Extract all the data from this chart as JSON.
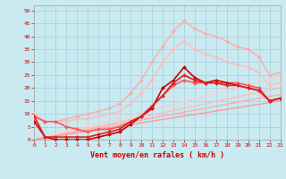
{
  "xlabel": "Vent moyen/en rafales ( km/h )",
  "bg_color": "#c8eaf0",
  "grid_color": "#a8ccd8",
  "ylim": [
    0,
    52
  ],
  "xlim": [
    0,
    23
  ],
  "yticks": [
    0,
    5,
    10,
    15,
    20,
    25,
    30,
    35,
    40,
    45,
    50
  ],
  "xticks": [
    0,
    1,
    2,
    3,
    4,
    5,
    6,
    7,
    8,
    9,
    10,
    11,
    12,
    13,
    14,
    15,
    16,
    17,
    18,
    19,
    20,
    21,
    22,
    23
  ],
  "series": [
    {
      "y": [
        10,
        7,
        7,
        8,
        9,
        10,
        11,
        12,
        14,
        18,
        23,
        30,
        36,
        42,
        46,
        43,
        41,
        40,
        38,
        36,
        35,
        32,
        25,
        26
      ],
      "color": "#ffaaaa",
      "lw": 1.0,
      "marker": "D",
      "ms": 2.0,
      "zorder": 3
    },
    {
      "y": [
        10,
        7,
        7,
        7,
        8,
        8,
        9,
        10,
        11,
        14,
        18,
        23,
        30,
        35,
        38,
        35,
        33,
        32,
        30,
        29,
        28,
        26,
        21,
        22
      ],
      "color": "#ffbbbb",
      "lw": 1.0,
      "marker": "D",
      "ms": 2.0,
      "zorder": 3
    },
    {
      "y": [
        0,
        1.0,
        2.0,
        3.1,
        4.2,
        5.2,
        6.3,
        7.3,
        8.4,
        9.5,
        10.5,
        11.6,
        12.6,
        13.7,
        14.7,
        15.8,
        16.9,
        17.9,
        19.0,
        20.0,
        21.1,
        22.1,
        23.2,
        24.2
      ],
      "color": "#ffcccc",
      "lw": 1.0,
      "marker": null,
      "ms": 0,
      "zorder": 2
    },
    {
      "y": [
        0,
        0.87,
        1.74,
        2.61,
        3.48,
        4.35,
        5.22,
        6.09,
        6.96,
        7.83,
        8.7,
        9.57,
        10.43,
        11.3,
        12.17,
        13.04,
        13.91,
        14.78,
        15.65,
        16.52,
        17.39,
        18.26,
        19.13,
        20.0
      ],
      "color": "#ffbbbb",
      "lw": 1.0,
      "marker": null,
      "ms": 0,
      "zorder": 2
    },
    {
      "y": [
        0,
        0.76,
        1.52,
        2.28,
        3.04,
        3.8,
        4.57,
        5.33,
        6.09,
        6.85,
        7.61,
        8.37,
        9.13,
        9.89,
        10.65,
        11.41,
        12.17,
        12.93,
        13.7,
        14.46,
        15.22,
        15.98,
        16.74,
        17.5
      ],
      "color": "#ffaaaa",
      "lw": 1.0,
      "marker": null,
      "ms": 0,
      "zorder": 2
    },
    {
      "y": [
        0,
        0.65,
        1.3,
        1.96,
        2.61,
        3.26,
        3.91,
        4.57,
        5.22,
        5.87,
        6.52,
        7.17,
        7.83,
        8.48,
        9.13,
        9.78,
        10.43,
        11.09,
        11.74,
        12.39,
        13.04,
        13.7,
        14.35,
        15.0
      ],
      "color": "#ff9999",
      "lw": 1.0,
      "marker": null,
      "ms": 0,
      "zorder": 2
    },
    {
      "y": [
        7,
        1,
        0,
        0,
        0,
        0,
        1,
        2,
        3,
        6,
        9,
        12,
        20,
        23,
        28,
        24,
        22,
        23,
        22,
        21,
        20,
        19,
        15,
        16
      ],
      "color": "#cc0000",
      "lw": 1.2,
      "marker": "D",
      "ms": 2.0,
      "zorder": 5
    },
    {
      "y": [
        9,
        1,
        1,
        1,
        1,
        1,
        2,
        3,
        4,
        7,
        9,
        13,
        17,
        22,
        25,
        23,
        22,
        22,
        21,
        21,
        20,
        19,
        15,
        16
      ],
      "color": "#dd2222",
      "lw": 1.2,
      "marker": "D",
      "ms": 2.0,
      "zorder": 5
    },
    {
      "y": [
        9,
        7,
        7,
        5,
        4,
        3,
        4,
        4,
        5,
        7,
        9,
        13,
        17,
        21,
        23,
        22,
        22,
        22,
        22,
        22,
        21,
        20,
        15,
        16
      ],
      "color": "#ff5555",
      "lw": 1.2,
      "marker": "D",
      "ms": 2.0,
      "zorder": 4
    }
  ]
}
